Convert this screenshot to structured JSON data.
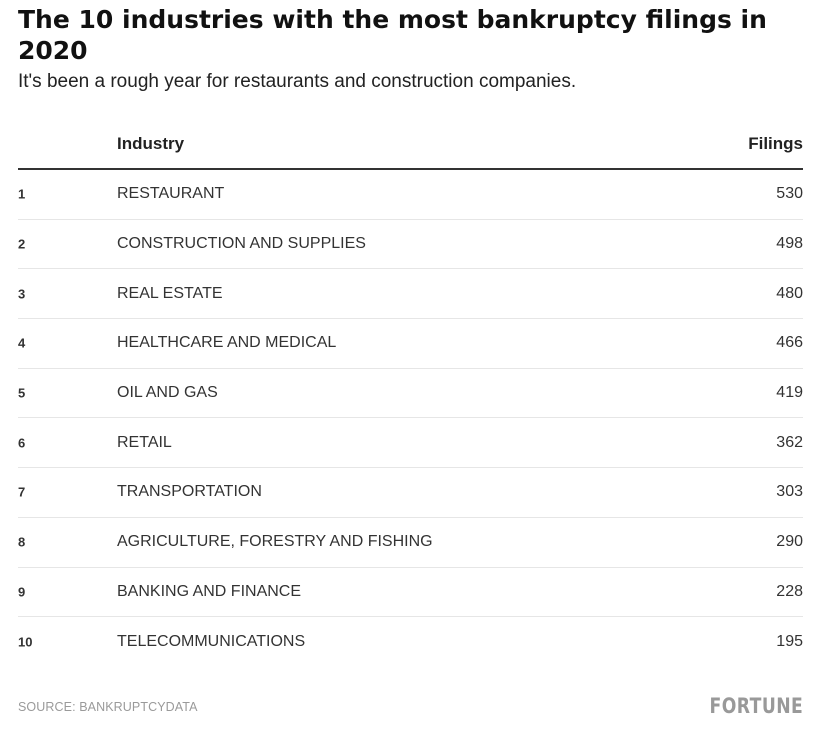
{
  "title": "The 10 industries with the most bankruptcy filings in 2020",
  "subtitle": "It's been a rough year for restaurants and construction companies.",
  "columns": {
    "rank": "",
    "industry": "Industry",
    "filings": "Filings"
  },
  "rows": [
    {
      "rank": "1",
      "industry": "RESTAURANT",
      "filings": "530"
    },
    {
      "rank": "2",
      "industry": "CONSTRUCTION AND SUPPLIES",
      "filings": "498"
    },
    {
      "rank": "3",
      "industry": "REAL ESTATE",
      "filings": "480"
    },
    {
      "rank": "4",
      "industry": "HEALTHCARE AND MEDICAL",
      "filings": "466"
    },
    {
      "rank": "5",
      "industry": "OIL AND GAS",
      "filings": "419"
    },
    {
      "rank": "6",
      "industry": "RETAIL",
      "filings": "362"
    },
    {
      "rank": "7",
      "industry": "TRANSPORTATION",
      "filings": "303"
    },
    {
      "rank": "8",
      "industry": "AGRICULTURE, FORESTRY AND FISHING",
      "filings": "290"
    },
    {
      "rank": "9",
      "industry": "BANKING AND FINANCE",
      "filings": "228"
    },
    {
      "rank": "10",
      "industry": "TELECOMMUNICATIONS",
      "filings": "195"
    }
  ],
  "source": "SOURCE: BANKRUPTCYDATA",
  "logo": "FORTUNE",
  "chart_data": {
    "type": "table",
    "title": "The 10 industries with the most bankruptcy filings in 2020",
    "subtitle": "It's been a rough year for restaurants and construction companies.",
    "columns": [
      "",
      "Industry",
      "Filings"
    ],
    "categories": [
      "RESTAURANT",
      "CONSTRUCTION AND SUPPLIES",
      "REAL ESTATE",
      "HEALTHCARE AND MEDICAL",
      "OIL AND GAS",
      "RETAIL",
      "TRANSPORTATION",
      "AGRICULTURE, FORESTRY AND FISHING",
      "BANKING AND FINANCE",
      "TELECOMMUNICATIONS"
    ],
    "ranks": [
      1,
      2,
      3,
      4,
      5,
      6,
      7,
      8,
      9,
      10
    ],
    "values": [
      530,
      498,
      480,
      466,
      419,
      362,
      303,
      290,
      228,
      195
    ],
    "source": "SOURCE: BANKRUPTCYDATA"
  }
}
